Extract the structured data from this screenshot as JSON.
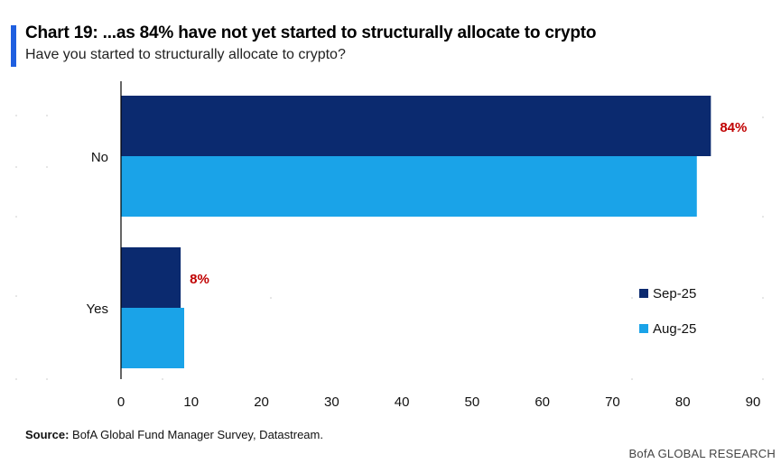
{
  "title": "Chart 19: ...as 84% have not yet started to structurally allocate to crypto",
  "subtitle": "Have you started to structurally allocate to crypto?",
  "source_label": "Source:",
  "source_text": "BofA Global Fund Manager Survey, Datastream.",
  "brand": "BofA GLOBAL RESEARCH",
  "colors": {
    "accent": "#1f5fe0",
    "sep25": "#0b2a6f",
    "aug25": "#1aa3e8",
    "highlight": "#c00000"
  },
  "chart_data": {
    "type": "bar",
    "orientation": "horizontal",
    "categories": [
      "No",
      "Yes"
    ],
    "series": [
      {
        "name": "Sep-25",
        "values": [
          84,
          8.5
        ]
      },
      {
        "name": "Aug-25",
        "values": [
          82,
          9
        ]
      }
    ],
    "annotations": [
      {
        "category": "No",
        "text": "84%"
      },
      {
        "category": "Yes",
        "text": "8%"
      }
    ],
    "xlim": [
      0,
      90
    ],
    "xticks": [
      0,
      10,
      20,
      30,
      40,
      50,
      60,
      70,
      80,
      90
    ],
    "legend_position": "bottom-right"
  }
}
